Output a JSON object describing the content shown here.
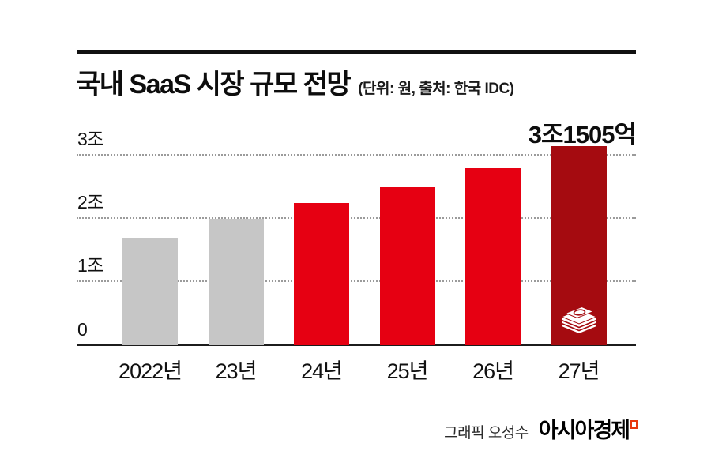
{
  "header": {
    "title": "국내 SaaS 시장 규모 전망",
    "unit_note": "(단위: 원, 출처: 한국 IDC)"
  },
  "annotation": "3조1505억",
  "chart_data": {
    "type": "bar",
    "title": "국내 SaaS 시장 규모 전망",
    "unit": "조 원",
    "source": "한국 IDC",
    "categories": [
      "2022년",
      "23년",
      "24년",
      "25년",
      "26년",
      "27년"
    ],
    "values": [
      1.7,
      2.0,
      2.25,
      2.5,
      2.8,
      3.1505
    ],
    "bar_colors": [
      "#c6c6c6",
      "#c6c6c6",
      "#e60012",
      "#e60012",
      "#e60012",
      "#a50b10"
    ],
    "value_label": {
      "index": 5,
      "text": "3조1505억"
    },
    "y_axis": {
      "max": 3.4,
      "ticks": [
        {
          "value": 0,
          "label": "0"
        },
        {
          "value": 1,
          "label": "1조"
        },
        {
          "value": 2,
          "label": "2조"
        },
        {
          "value": 3,
          "label": "3조"
        }
      ]
    },
    "grid": "horizontal dotted",
    "legend": "none",
    "icon": {
      "index": 5,
      "name": "money-stack-icon"
    }
  },
  "footer": {
    "credit": "그래픽 오성수",
    "brand": "아시아경제"
  },
  "colors": {
    "gray_bar": "#c6c6c6",
    "red_bar": "#e60012",
    "dark_red_bar": "#a50b10",
    "brand_red": "#e8380d",
    "rule_black": "#111111",
    "gridline_gray": "#9b9b9b"
  }
}
